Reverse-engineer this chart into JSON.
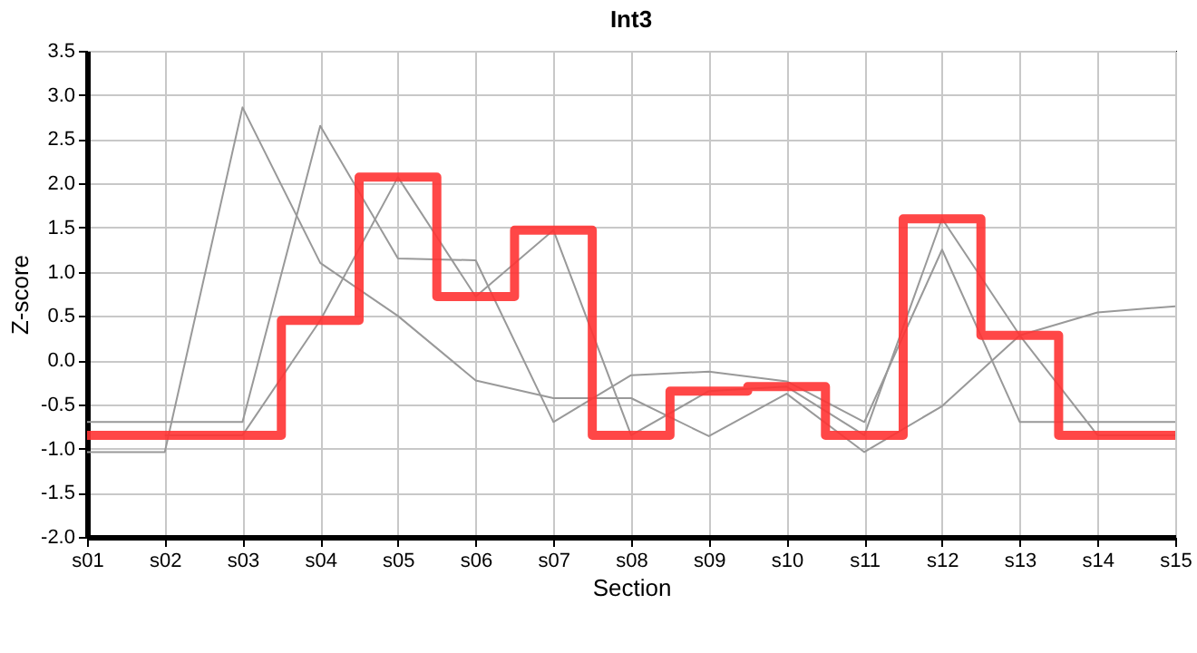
{
  "chart_data": {
    "type": "line",
    "title": "Int3",
    "xlabel": "Section",
    "ylabel": "Z-score",
    "categories": [
      "s01",
      "s02",
      "s03",
      "s04",
      "s05",
      "s06",
      "s07",
      "s08",
      "s09",
      "s10",
      "s11",
      "s12",
      "s13",
      "s14",
      "s15"
    ],
    "series": [
      {
        "color": "#999999",
        "values": [
          -1.04,
          -1.04,
          2.86,
          1.1,
          0.5,
          -0.23,
          -0.43,
          -0.43,
          -0.86,
          -0.38,
          -1.04,
          -0.52,
          0.28,
          0.54,
          0.61
        ]
      },
      {
        "color": "#999999",
        "values": [
          -0.7,
          -0.7,
          -0.7,
          2.65,
          1.15,
          1.13,
          -0.7,
          -0.17,
          -0.13,
          -0.24,
          -0.7,
          1.25,
          -0.7,
          -0.7,
          -0.7
        ]
      },
      {
        "color": "#999999",
        "values": [
          null,
          -0.85,
          -0.85,
          0.45,
          2.07,
          0.72,
          1.47,
          -0.85,
          -0.35,
          -0.3,
          -0.85,
          1.6,
          0.28,
          -0.85,
          -0.85
        ]
      },
      {
        "type": "step",
        "color": "#ff3333",
        "values": [
          -0.85,
          -0.85,
          -0.85,
          0.45,
          2.07,
          0.72,
          1.47,
          -0.85,
          -0.35,
          -0.3,
          -0.85,
          1.6,
          0.28,
          -0.85,
          -0.85
        ]
      }
    ],
    "ylim": [
      -2.0,
      3.5
    ],
    "yticks": [
      {
        "value": -2,
        "label": "-2.0"
      },
      {
        "value": -1.5,
        "label": "-1.5"
      },
      {
        "value": -1,
        "label": "-1.0"
      },
      {
        "value": -0.5,
        "label": "-0.5"
      },
      {
        "value": 0,
        "label": "0.0"
      },
      {
        "value": 0.5,
        "label": "0.5"
      },
      {
        "value": 1,
        "label": "1.0"
      },
      {
        "value": 1.5,
        "label": "1.5"
      },
      {
        "value": 2,
        "label": "2.0"
      },
      {
        "value": 2.5,
        "label": "2.5"
      },
      {
        "value": 3,
        "label": "3.0"
      },
      {
        "value": 3.5,
        "label": "3.5"
      }
    ],
    "grid": true
  }
}
